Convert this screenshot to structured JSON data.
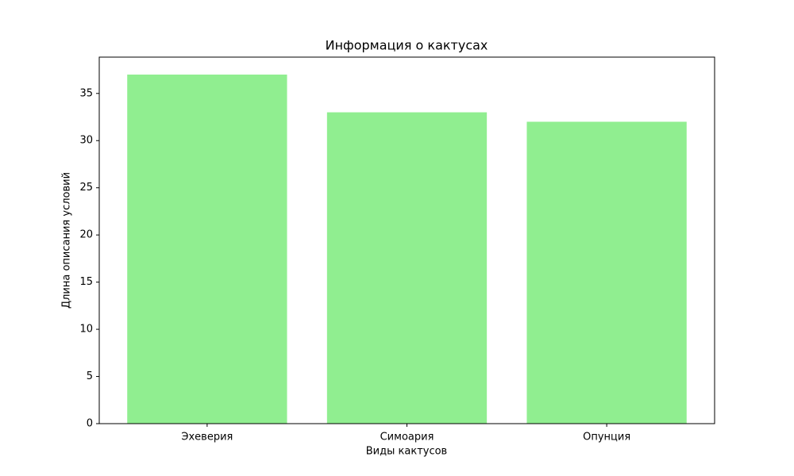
{
  "chart_data": {
    "type": "bar",
    "title": "Информация о кактусах",
    "x_label": "Виды кактусов",
    "y_label": "Длина описания условий",
    "categories": [
      "Эхеверия",
      "Симоария",
      "Опунция"
    ],
    "values": [
      37,
      33,
      32
    ],
    "color": "#90ee90",
    "ylim": [
      0,
      38.85
    ],
    "yticks": [
      0,
      5,
      10,
      15,
      20,
      25,
      30,
      35
    ],
    "grid": false
  }
}
